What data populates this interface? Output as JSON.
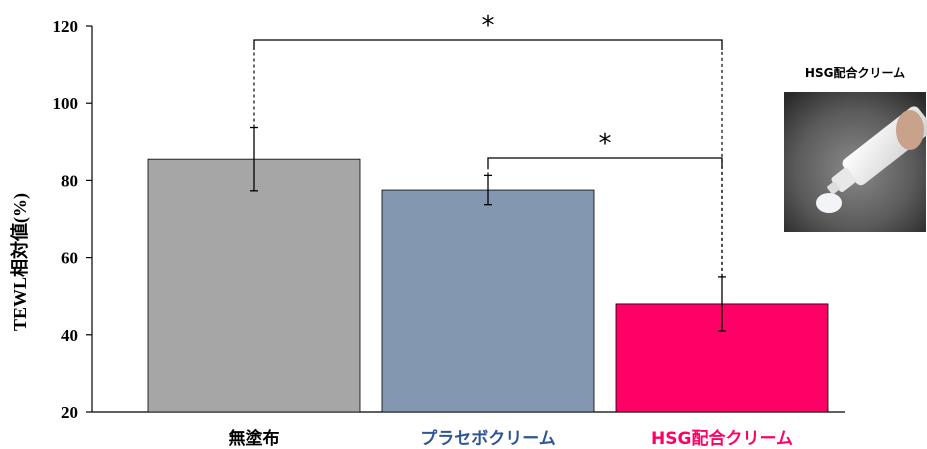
{
  "chart_data": {
    "type": "bar",
    "title": "",
    "ylabel": "TEWL相対値(%)",
    "xlabel": "",
    "ylim": [
      20,
      120
    ],
    "yticks": [
      20,
      40,
      60,
      80,
      100,
      120
    ],
    "grid": false,
    "categories": [
      "無塗布",
      "プラセボクリーム",
      "HSG配合クリーム"
    ],
    "values": [
      85.5,
      77.5,
      48
    ],
    "error": [
      8.2,
      3.8,
      7
    ],
    "bar_colors": [
      "#a6a6a6",
      "#8497b0",
      "#ff0066"
    ],
    "label_colors": [
      "#000000",
      "#2f5597",
      "#ff0066"
    ],
    "significance": [
      {
        "from": 0,
        "to": 2,
        "label": "*"
      },
      {
        "from": 1,
        "to": 2,
        "label": "*"
      }
    ]
  },
  "photo": {
    "caption": "HSG配合クリーム"
  }
}
